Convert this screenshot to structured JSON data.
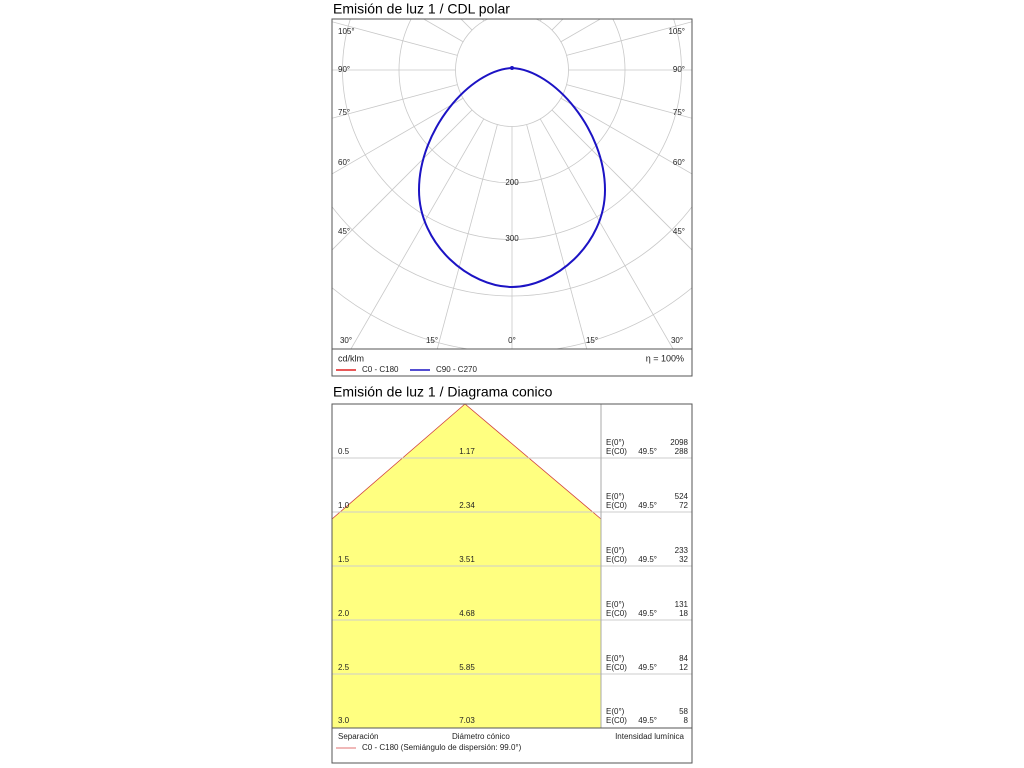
{
  "polar": {
    "title": "Emisión de luz 1 / CDL polar",
    "left_angles": [
      "105°",
      "90°",
      "75°",
      "60°",
      "45°"
    ],
    "right_angles": [
      "105°",
      "90°",
      "75°",
      "60°",
      "45°"
    ],
    "bottom_angles": [
      "30°",
      "15°",
      "0°",
      "15°",
      "30°"
    ],
    "radial_labels": [
      "200",
      "300"
    ],
    "unit": "cd/klm",
    "efficiency": "η = 100%",
    "legend": [
      "C0 - C180",
      "C90 - C270"
    ]
  },
  "cone": {
    "title": "Emisión de luz 1 / Diagrama conico",
    "rows": [
      {
        "separation": "0.5",
        "diameter": "1.17",
        "e0_label": "E(0°)",
        "ec0_label": "E(C0)",
        "angle": "49.5°",
        "e0": "2098",
        "ec0": "288"
      },
      {
        "separation": "1.0",
        "diameter": "2.34",
        "e0_label": "E(0°)",
        "ec0_label": "E(C0)",
        "angle": "49.5°",
        "e0": "524",
        "ec0": "72"
      },
      {
        "separation": "1.5",
        "diameter": "3.51",
        "e0_label": "E(0°)",
        "ec0_label": "E(C0)",
        "angle": "49.5°",
        "e0": "233",
        "ec0": "32"
      },
      {
        "separation": "2.0",
        "diameter": "4.68",
        "e0_label": "E(0°)",
        "ec0_label": "E(C0)",
        "angle": "49.5°",
        "e0": "131",
        "ec0": "18"
      },
      {
        "separation": "2.5",
        "diameter": "5.85",
        "e0_label": "E(0°)",
        "ec0_label": "E(C0)",
        "angle": "49.5°",
        "e0": "84",
        "ec0": "12"
      },
      {
        "separation": "3.0",
        "diameter": "7.03",
        "e0_label": "E(0°)",
        "ec0_label": "E(C0)",
        "angle": "49.5°",
        "e0": "58",
        "ec0": "8"
      }
    ],
    "footer": {
      "separation": "Separación",
      "diameter": "Diámetro cónico",
      "intensity": "Intensidad lumínica",
      "legend": "C0 - C180 (Semiángulo de dispersión: 99.0°)"
    }
  }
}
